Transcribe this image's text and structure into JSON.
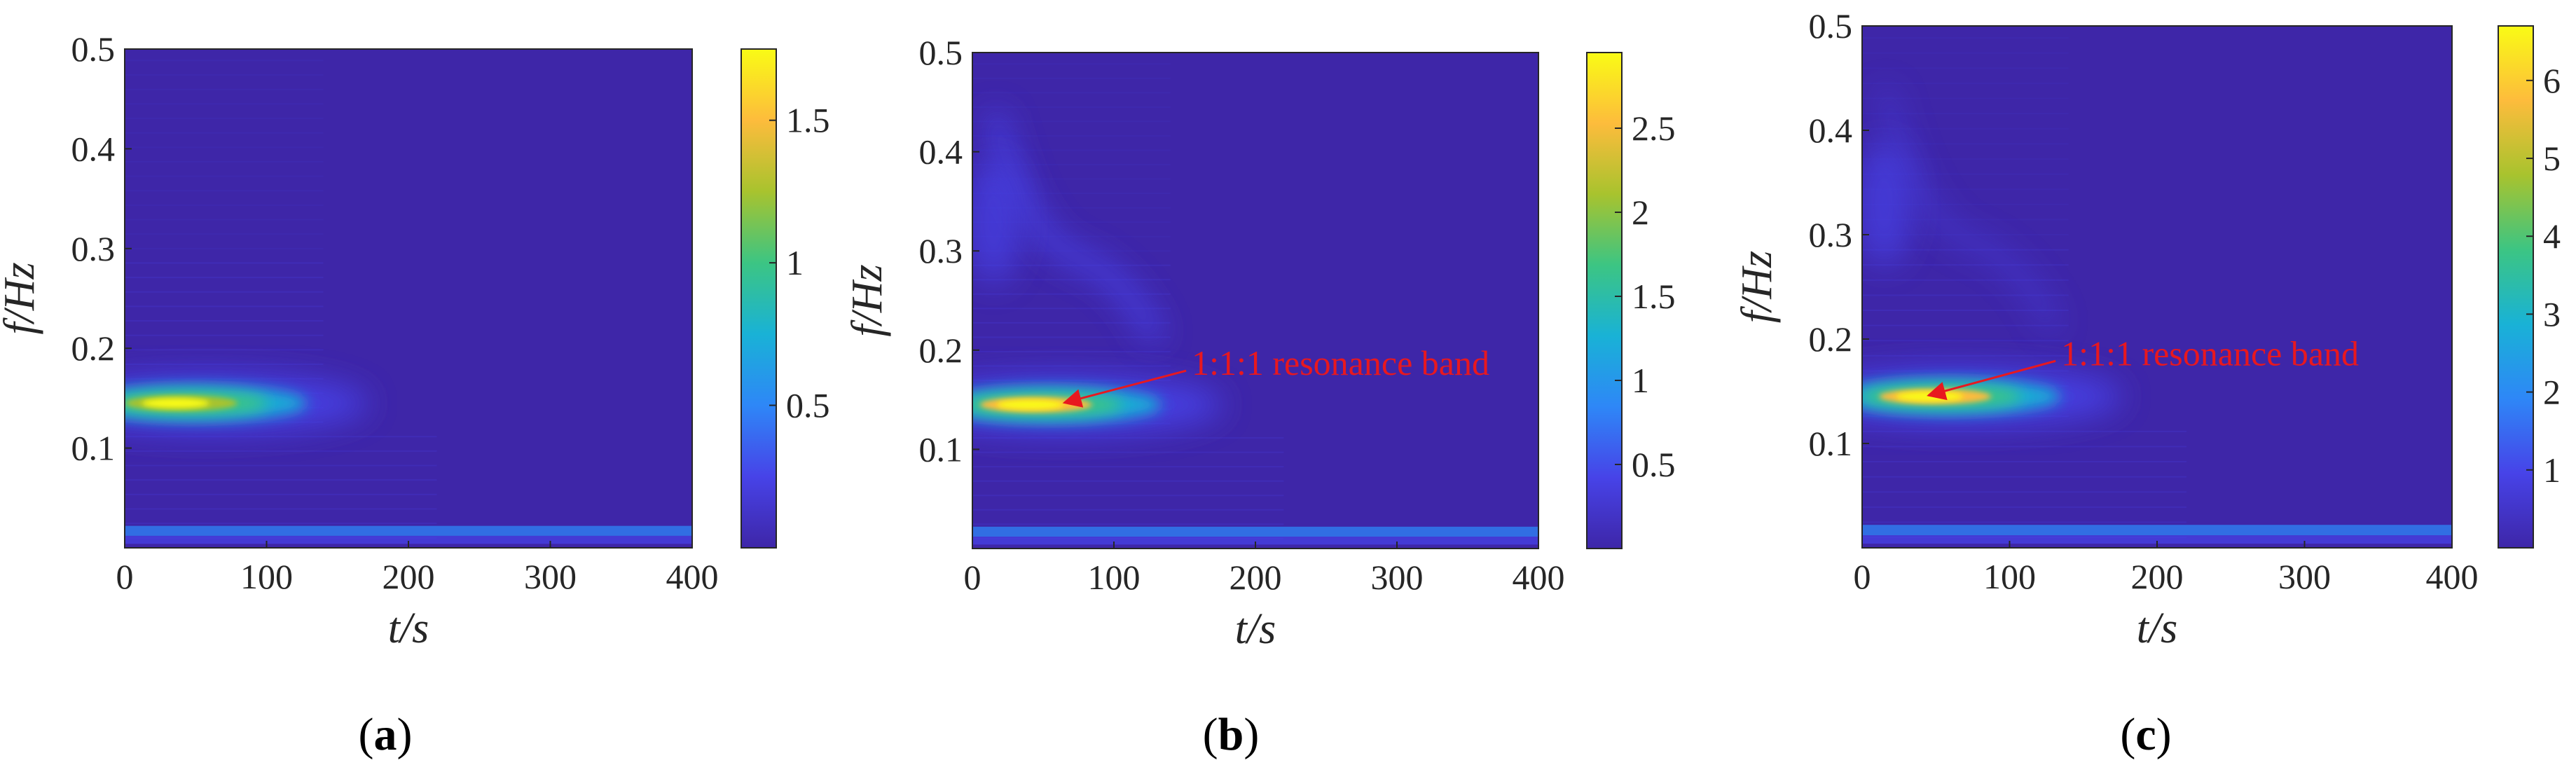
{
  "colors": {
    "annotation": "#e8181f",
    "axis": "#262626",
    "colormap": [
      "#3e26a8",
      "#4743e8",
      "#2e87f7",
      "#19b2d6",
      "#3cc583",
      "#a8c32e",
      "#fdbc3c",
      "#f9fb15"
    ]
  },
  "chart_data": [
    {
      "type": "heatmap",
      "panel_label": "a",
      "xlabel": "t/s",
      "ylabel": "f/Hz",
      "xlim": [
        0,
        400
      ],
      "ylim": [
        0,
        0.5
      ],
      "xticks": [
        "0",
        "100",
        "200",
        "300",
        "400"
      ],
      "yticks": [
        "0.1",
        "0.2",
        "0.3",
        "0.4",
        "0.5"
      ],
      "colorbar": {
        "min": 0,
        "max": 1.75,
        "ticks": [
          "0.5",
          "1",
          "1.5"
        ]
      },
      "peak": {
        "t": 30,
        "f": 0.145,
        "value": 1.7
      },
      "annotation": null
    },
    {
      "type": "heatmap",
      "panel_label": "b",
      "xlabel": "t/s",
      "ylabel": "f/Hz",
      "xlim": [
        0,
        400
      ],
      "ylim": [
        0,
        0.5
      ],
      "xticks": [
        "0",
        "100",
        "200",
        "300",
        "400"
      ],
      "yticks": [
        "0.1",
        "0.2",
        "0.3",
        "0.4",
        "0.5"
      ],
      "colorbar": {
        "min": 0,
        "max": 2.95,
        "ticks": [
          "0.5",
          "1",
          "1.5",
          "2",
          "2.5"
        ]
      },
      "peak": {
        "t": 35,
        "f": 0.145,
        "value": 2.9
      },
      "annotation": {
        "text": "1:1:1  resonance band",
        "text_t": 155,
        "text_f": 0.175,
        "arrow_t": 65,
        "arrow_f": 0.147
      }
    },
    {
      "type": "heatmap",
      "panel_label": "c",
      "xlabel": "t/s",
      "ylabel": "f/Hz",
      "xlim": [
        0,
        400
      ],
      "ylim": [
        0,
        0.5
      ],
      "xticks": [
        "0",
        "100",
        "200",
        "300",
        "400"
      ],
      "yticks": [
        "0.1",
        "0.2",
        "0.3",
        "0.4",
        "0.5"
      ],
      "colorbar": {
        "min": 0,
        "max": 6.7,
        "ticks": [
          "1",
          "2",
          "3",
          "4",
          "5",
          "6"
        ]
      },
      "peak": {
        "t": 40,
        "f": 0.145,
        "value": 6.6
      },
      "annotation": {
        "text": "1:1:1 resonance band",
        "text_t": 135,
        "text_f": 0.175,
        "arrow_t": 45,
        "arrow_f": 0.146
      }
    }
  ]
}
